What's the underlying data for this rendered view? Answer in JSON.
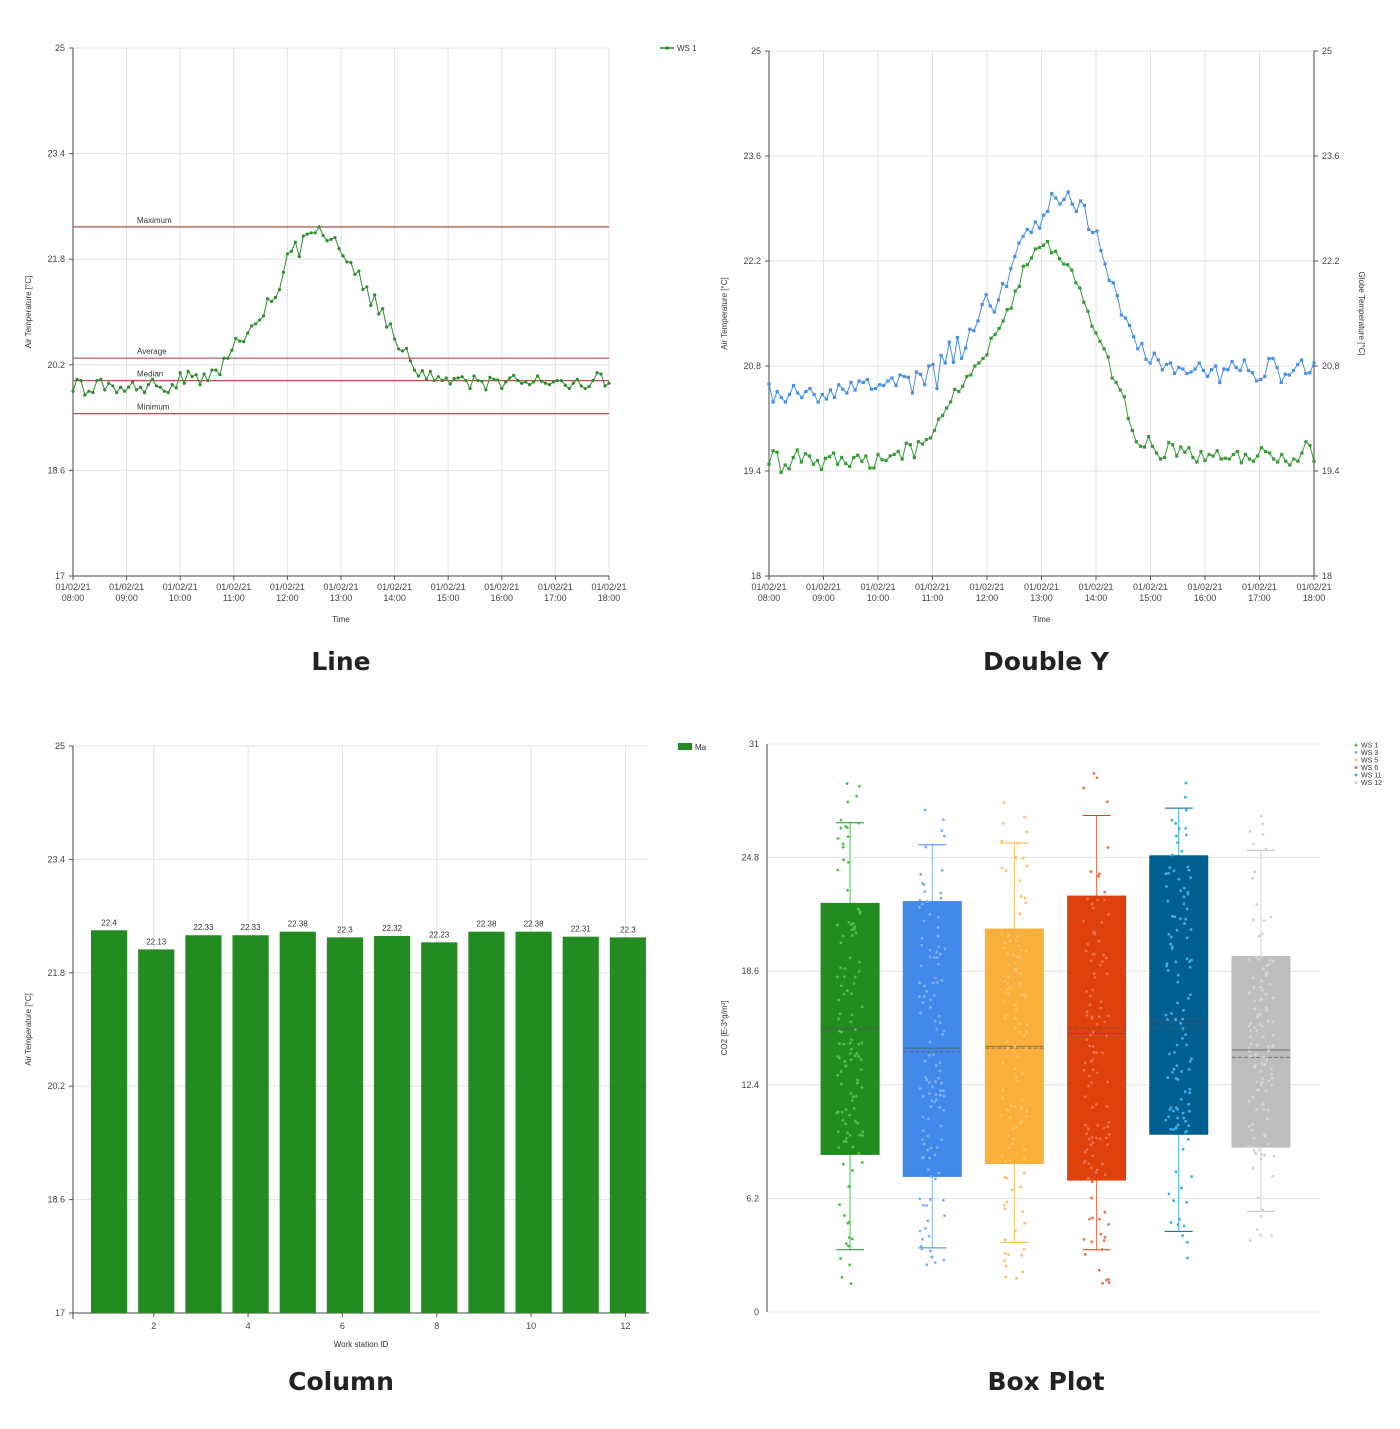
{
  "captions": {
    "line": "Line",
    "double_y": "Double Y",
    "column": "Column",
    "box": "Box Plot"
  },
  "chart_data": [
    {
      "id": "line",
      "type": "line",
      "ylabel": "Air Temperature [°C]",
      "xlabel": "Time",
      "ylim": [
        17,
        25
      ],
      "yticks": [
        "25",
        "23.4",
        "21.8",
        "20.2",
        "18.6",
        "17"
      ],
      "xticks": [
        [
          "01/02/21",
          "08:00"
        ],
        [
          "01/02/21",
          "09:00"
        ],
        [
          "01/02/21",
          "10:00"
        ],
        [
          "01/02/21",
          "11:00"
        ],
        [
          "01/02/21",
          "12:00"
        ],
        [
          "01/02/21",
          "13:00"
        ],
        [
          "01/02/21",
          "14:00"
        ],
        [
          "01/02/21",
          "15:00"
        ],
        [
          "01/02/21",
          "16:00"
        ],
        [
          "01/02/21",
          "17:00"
        ],
        [
          "01/02/21",
          "18:00"
        ]
      ],
      "x_start": 8,
      "x_end": 18,
      "grid": true,
      "legend_position": "top-right",
      "series": [
        {
          "name": "WS 1",
          "color": "#2e8b2e",
          "values": [
            19.8,
            19.98,
            19.96,
            19.74,
            19.8,
            19.78,
            19.96,
            19.98,
            19.82,
            19.92,
            19.88,
            19.78,
            19.86,
            19.8,
            19.86,
            19.94,
            19.82,
            19.86,
            19.78,
            19.9,
            19.98,
            19.88,
            19.86,
            19.8,
            19.78,
            19.9,
            19.85,
            20.08,
            19.92,
            20.1,
            20.02,
            20.05,
            19.9,
            20.06,
            19.96,
            20.12,
            20.12,
            20.05,
            20.3,
            20.3,
            20.42,
            20.6,
            20.56,
            20.55,
            20.68,
            20.79,
            20.82,
            20.88,
            20.94,
            21.2,
            21.16,
            21.22,
            21.34,
            21.6,
            21.88,
            21.92,
            22.06,
            21.84,
            22.15,
            22.18,
            22.2,
            22.2,
            22.29,
            22.16,
            22.08,
            22.1,
            22.13,
            21.96,
            21.85,
            21.76,
            21.75,
            21.57,
            21.62,
            21.34,
            21.38,
            21.1,
            21.26,
            20.97,
            21.05,
            20.77,
            20.82,
            20.59,
            20.44,
            20.41,
            20.45,
            20.26,
            20.12,
            20.03,
            20.11,
            19.98,
            20.1,
            19.96,
            20.02,
            19.96,
            20.0,
            19.91,
            19.99,
            20.0,
            20.02,
            19.96,
            19.84,
            20.03,
            19.96,
            19.95,
            19.82,
            20.01,
            19.98,
            19.97,
            19.84,
            19.94,
            20.0,
            20.04,
            19.96,
            19.92,
            19.94,
            19.9,
            19.94,
            20.03,
            19.95,
            19.92,
            19.9,
            19.94,
            19.96,
            19.96,
            19.89,
            19.84,
            19.92,
            19.98,
            19.88,
            19.84,
            19.87,
            19.96,
            20.08,
            20.06,
            19.88,
            19.92
          ]
        }
      ],
      "reference_lines": [
        {
          "label": "Maximum",
          "value": 22.29
        },
        {
          "label": "Average",
          "value": 20.3
        },
        {
          "label": "Median",
          "value": 19.96
        },
        {
          "label": "Minimum",
          "value": 19.46
        }
      ],
      "reference_color": "#b5504e"
    },
    {
      "id": "double_y",
      "type": "line",
      "ylabel": "Air Temperature [°C]",
      "y2label": "Globe Temperature [°C]",
      "xlabel": "Time",
      "ylim": [
        18,
        25
      ],
      "yticks": [
        "25",
        "23.6",
        "22.2",
        "20.8",
        "19.4",
        "18"
      ],
      "y2ticks": [
        "25",
        "23.6",
        "22.2",
        "20.8",
        "19.4",
        "18"
      ],
      "xticks": [
        [
          "01/02/21",
          "08:00"
        ],
        [
          "01/02/21",
          "09:00"
        ],
        [
          "01/02/21",
          "10:00"
        ],
        [
          "01/02/21",
          "11:00"
        ],
        [
          "01/02/21",
          "12:00"
        ],
        [
          "01/02/21",
          "13:00"
        ],
        [
          "01/02/21",
          "14:00"
        ],
        [
          "01/02/21",
          "15:00"
        ],
        [
          "01/02/21",
          "16:00"
        ],
        [
          "01/02/21",
          "17:00"
        ],
        [
          "01/02/21",
          "18:00"
        ]
      ],
      "x_start": 8,
      "x_end": 18,
      "grid": true,
      "series": [
        {
          "name": "Globe Temperature",
          "color": "#4a90e2",
          "values": [
            20.56,
            20.32,
            20.46,
            20.38,
            20.32,
            20.42,
            20.54,
            20.44,
            20.38,
            20.46,
            20.5,
            20.42,
            20.32,
            20.42,
            20.36,
            20.48,
            20.38,
            20.55,
            20.49,
            20.44,
            20.58,
            20.48,
            20.6,
            20.58,
            20.62,
            20.49,
            20.5,
            20.55,
            20.54,
            20.6,
            20.64,
            20.54,
            20.68,
            20.66,
            20.65,
            20.44,
            20.72,
            20.69,
            20.55,
            20.8,
            20.82,
            20.5,
            20.94,
            20.84,
            21.12,
            20.85,
            21.18,
            20.9,
            21.04,
            21.29,
            21.27,
            21.4,
            21.62,
            21.75,
            21.6,
            21.52,
            21.68,
            21.9,
            21.86,
            22.1,
            22.26,
            22.44,
            22.53,
            22.62,
            22.58,
            22.72,
            22.64,
            22.81,
            22.86,
            23.1,
            23.04,
            22.96,
            23.02,
            23.12,
            22.96,
            22.86,
            23.0,
            22.94,
            22.62,
            22.58,
            22.6,
            22.34,
            22.16,
            21.94,
            21.91,
            21.74,
            21.48,
            21.44,
            21.34,
            21.19,
            21.03,
            21.1,
            20.89,
            20.84,
            20.97,
            20.88,
            20.75,
            20.82,
            20.84,
            20.7,
            20.78,
            20.76,
            20.7,
            20.72,
            20.76,
            20.84,
            20.74,
            20.66,
            20.75,
            20.8,
            20.58,
            20.76,
            20.75,
            20.86,
            20.78,
            20.74,
            20.88,
            20.74,
            20.71,
            20.6,
            20.62,
            20.66,
            20.9,
            20.9,
            20.78,
            20.58,
            20.69,
            20.68,
            20.74,
            20.82,
            20.88,
            20.7,
            20.71,
            20.84
          ]
        },
        {
          "name": "Air Temperature",
          "color": "#3a9a3a",
          "values": [
            19.49,
            19.67,
            19.65,
            19.38,
            19.48,
            19.43,
            19.58,
            19.68,
            19.52,
            19.63,
            19.6,
            19.49,
            19.54,
            19.42,
            19.57,
            19.59,
            19.64,
            19.49,
            19.58,
            19.5,
            19.46,
            19.58,
            19.61,
            19.53,
            19.6,
            19.44,
            19.44,
            19.62,
            19.55,
            19.54,
            19.6,
            19.62,
            19.66,
            19.56,
            19.77,
            19.75,
            19.58,
            19.79,
            19.76,
            19.82,
            19.84,
            19.94,
            20.09,
            20.14,
            20.24,
            20.32,
            20.49,
            20.46,
            20.53,
            20.66,
            20.68,
            20.8,
            20.84,
            20.9,
            20.95,
            21.17,
            21.22,
            21.3,
            21.4,
            21.55,
            21.57,
            21.8,
            21.86,
            22.13,
            22.15,
            22.24,
            22.36,
            22.38,
            22.41,
            22.46,
            22.31,
            22.33,
            22.23,
            22.16,
            22.15,
            22.08,
            21.91,
            21.84,
            21.65,
            21.53,
            21.33,
            21.24,
            21.13,
            21.03,
            20.92,
            20.64,
            20.58,
            20.48,
            20.39,
            20.1,
            19.94,
            19.79,
            19.73,
            19.72,
            19.86,
            19.73,
            19.64,
            19.56,
            19.58,
            19.78,
            19.75,
            19.6,
            19.72,
            19.65,
            19.71,
            19.58,
            19.52,
            19.66,
            19.54,
            19.62,
            19.6,
            19.67,
            19.56,
            19.57,
            19.56,
            19.62,
            19.66,
            19.51,
            19.62,
            19.56,
            19.53,
            19.6,
            19.71,
            19.66,
            19.64,
            19.56,
            19.52,
            19.62,
            19.53,
            19.48,
            19.56,
            19.53,
            19.64,
            19.79,
            19.74,
            19.53
          ]
        }
      ]
    },
    {
      "id": "column",
      "type": "bar",
      "ylabel": "Air Temperature [°C]",
      "xlabel": "Work station ID",
      "ylim": [
        17,
        25
      ],
      "yticks": [
        "25",
        "23.4",
        "21.8",
        "20.2",
        "18.6",
        "17"
      ],
      "categories": [
        "1",
        "2",
        "3",
        "4",
        "5",
        "6",
        "7",
        "8",
        "9",
        "10",
        "11",
        "12"
      ],
      "xtick_labels": [
        "2",
        "4",
        "6",
        "8",
        "10",
        "12"
      ],
      "legend_position": "top-right",
      "series": [
        {
          "name": "Ma",
          "color": "#228b22",
          "values": [
            22.4,
            22.13,
            22.33,
            22.33,
            22.38,
            22.3,
            22.32,
            22.23,
            22.38,
            22.38,
            22.31,
            22.3
          ],
          "labels": [
            "22.4",
            "22.13",
            "22.33",
            "22.33",
            "22.38",
            "22.3",
            "22.32",
            "22.23",
            "22.38",
            "22.38",
            "22.31",
            "22.3"
          ]
        }
      ]
    },
    {
      "id": "box",
      "type": "box",
      "ylabel": "CO2 [E-3*g/m³]",
      "ylim": [
        0,
        31
      ],
      "yticks": [
        "31",
        "24.8",
        "18.6",
        "12.4",
        "6.2",
        "0"
      ],
      "legend_position": "top-right",
      "series": [
        {
          "name": "WS 1",
          "color": "#228b22",
          "point_color": "#4cc24c",
          "whisker_low": 3.4,
          "q1": 8.6,
          "median": 15.5,
          "mean": 15.4,
          "q3": 22.3,
          "whisker_high": 26.7
        },
        {
          "name": "WS 3",
          "color": "#4189ea",
          "point_color": "#7fb1f2",
          "whisker_low": 3.5,
          "q1": 7.4,
          "median": 14.4,
          "mean": 14.2,
          "q3": 22.4,
          "whisker_high": 25.5
        },
        {
          "name": "WS 5",
          "color": "#fbb03b",
          "point_color": "#fbc46a",
          "whisker_low": 3.8,
          "q1": 8.1,
          "median": 14.5,
          "mean": 14.4,
          "q3": 20.9,
          "whisker_high": 25.6
        },
        {
          "name": "WS 6",
          "color": "#e0400c",
          "point_color": "#ee7050",
          "whisker_low": 3.4,
          "q1": 7.2,
          "median": 15.2,
          "mean": 15.5,
          "q3": 22.7,
          "whisker_high": 27.1
        },
        {
          "name": "WS 11",
          "color": "#005f8f",
          "point_color": "#38b0ec",
          "whisker_low": 4.4,
          "q1": 9.7,
          "median": 15.9,
          "mean": 15.5,
          "q3": 24.9,
          "whisker_high": 27.5
        },
        {
          "name": "WS 12",
          "color": "#bdbdbd",
          "point_color": "#d4d4d4",
          "whisker_low": 5.5,
          "q1": 9.0,
          "median": 14.3,
          "mean": 13.9,
          "q3": 19.4,
          "whisker_high": 25.2
        }
      ]
    }
  ]
}
